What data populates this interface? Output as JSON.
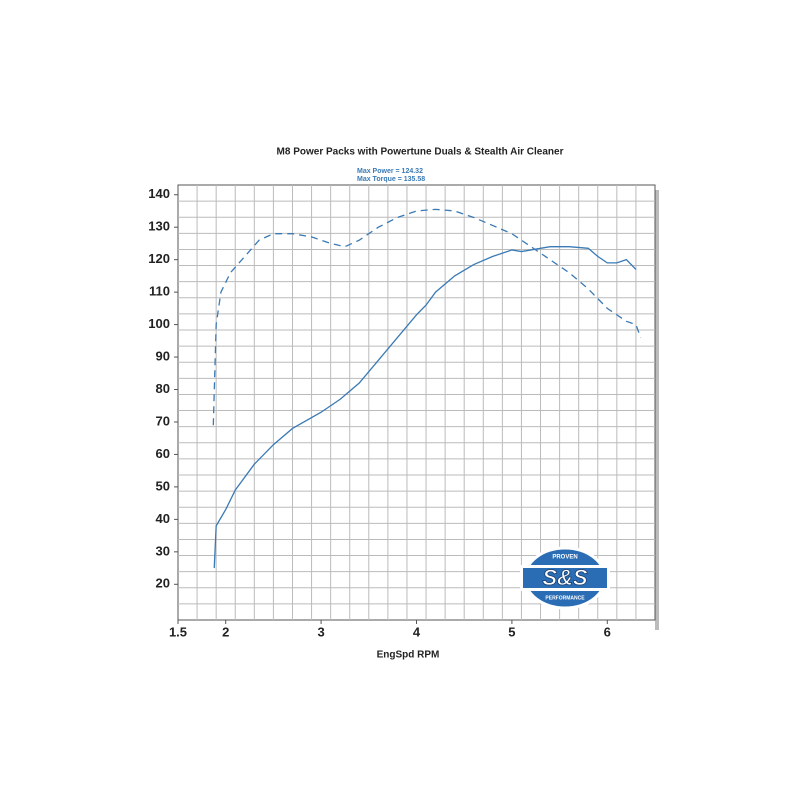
{
  "chart_data": {
    "type": "line",
    "title": "M8 Power Packs with Powertune Duals & Stealth Air Cleaner",
    "annotations": [
      "Max Power  = 124.32",
      "Max Torque = 135.58"
    ],
    "x_label": "EngSpd RPM",
    "logo": {
      "text": "S&S",
      "top": "PROVEN",
      "bottom": "PERFORMANCE"
    },
    "xlim": [
      1.5,
      6.5
    ],
    "xticks": [
      1.5,
      2,
      3,
      4,
      5,
      6
    ],
    "ylim": [
      9,
      143
    ],
    "yticks": [
      20,
      30,
      40,
      50,
      60,
      70,
      80,
      90,
      100,
      110,
      120,
      130,
      140
    ],
    "grid": true,
    "series": [
      {
        "color": "#3a7ab5",
        "dash": false,
        "x": [
          1.88,
          1.9,
          2.0,
          2.1,
          2.3,
          2.5,
          2.7,
          3.0,
          3.2,
          3.4,
          3.6,
          3.8,
          4.0,
          4.1,
          4.2,
          4.4,
          4.6,
          4.8,
          5.0,
          5.1,
          5.2,
          5.4,
          5.6,
          5.8,
          5.9,
          6.0,
          6.1,
          6.2,
          6.3
        ],
        "values": [
          25,
          38,
          43,
          49,
          57,
          63,
          68,
          73,
          77,
          82,
          89,
          96,
          103,
          106,
          110,
          115,
          118.5,
          121,
          123,
          122.5,
          123,
          124,
          124,
          123.5,
          121,
          119,
          119,
          120,
          117
        ]
      },
      {
        "color": "#3a7ab5",
        "dash": true,
        "x": [
          1.87,
          1.9,
          1.95,
          2.05,
          2.2,
          2.35,
          2.5,
          2.7,
          2.9,
          3.1,
          3.25,
          3.4,
          3.6,
          3.8,
          4.0,
          4.2,
          4.4,
          4.6,
          4.8,
          5.0,
          5.2,
          5.4,
          5.6,
          5.8,
          6.0,
          6.2,
          6.3,
          6.35
        ],
        "values": [
          69,
          100,
          110,
          116,
          121,
          126,
          128,
          128,
          127,
          125,
          124,
          126,
          130,
          133,
          135,
          135.5,
          135,
          133,
          130.5,
          128,
          124,
          120,
          116,
          111,
          105,
          101,
          100,
          96
        ]
      }
    ]
  }
}
